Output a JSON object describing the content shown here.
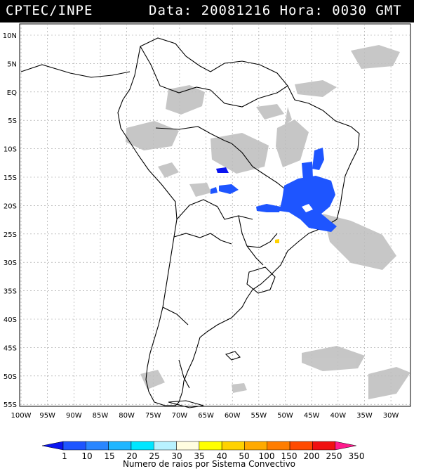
{
  "header": {
    "source": "CPTEC/INPE",
    "datetime": "Data: 20081216 Hora: 0030 GMT"
  },
  "map": {
    "lat_labels": [
      "10N",
      "5N",
      "EQ",
      "5S",
      "10S",
      "15S",
      "20S",
      "25S",
      "30S",
      "35S",
      "40S",
      "45S",
      "50S",
      "55S"
    ],
    "lon_labels": [
      "100W",
      "95W",
      "90W",
      "85W",
      "80W",
      "75W",
      "70W",
      "65W",
      "60W",
      "55W",
      "50W",
      "45W",
      "40W",
      "35W",
      "30W"
    ],
    "lat_values": [
      10,
      5,
      0,
      -5,
      -10,
      -15,
      -20,
      -25,
      -30,
      -35,
      -40,
      -45,
      -50,
      -55
    ],
    "lon_values": [
      -100,
      -95,
      -90,
      -85,
      -80,
      -75,
      -70,
      -65,
      -60,
      -55,
      -50,
      -45,
      -40,
      -35,
      -30
    ],
    "cloud_color": "#bdbdbd",
    "coast_color": "#000000",
    "grid_color": "#9a9a9a"
  },
  "legend": {
    "title": "Numero de raios por Sistema Convectivo",
    "ticks": [
      "1",
      "10",
      "15",
      "20",
      "25",
      "30",
      "35",
      "40",
      "50",
      "100",
      "150",
      "200",
      "250",
      "350"
    ],
    "colors": [
      "#0a14f0",
      "#1e55ff",
      "#2a86ff",
      "#1fb6ff",
      "#00e6ff",
      "#b8f2ff",
      "#fffde0",
      "#ffff00",
      "#ffd200",
      "#ffaa00",
      "#ff7d00",
      "#ff4a00",
      "#f01010",
      "#ff1a8c"
    ]
  }
}
